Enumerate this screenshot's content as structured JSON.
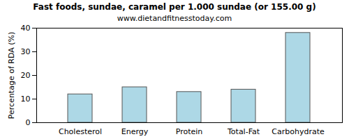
{
  "chart_data": {
    "type": "bar",
    "title": "Fast foods, sundae, caramel per 1.000 sundae (or 155.00 g)",
    "subtitle": "www.dietandfitnesstoday.com",
    "y_label": "Percentage of RDA (%)",
    "categories": [
      "Cholesterol",
      "Energy",
      "Protein",
      "Total-Fat",
      "Carbohydrate"
    ],
    "values": [
      12,
      15,
      13,
      14,
      38
    ],
    "color": "#add8e6",
    "ylim": [
      0,
      40
    ],
    "yticks": [
      0,
      10,
      20,
      30,
      40
    ],
    "grid": false
  }
}
